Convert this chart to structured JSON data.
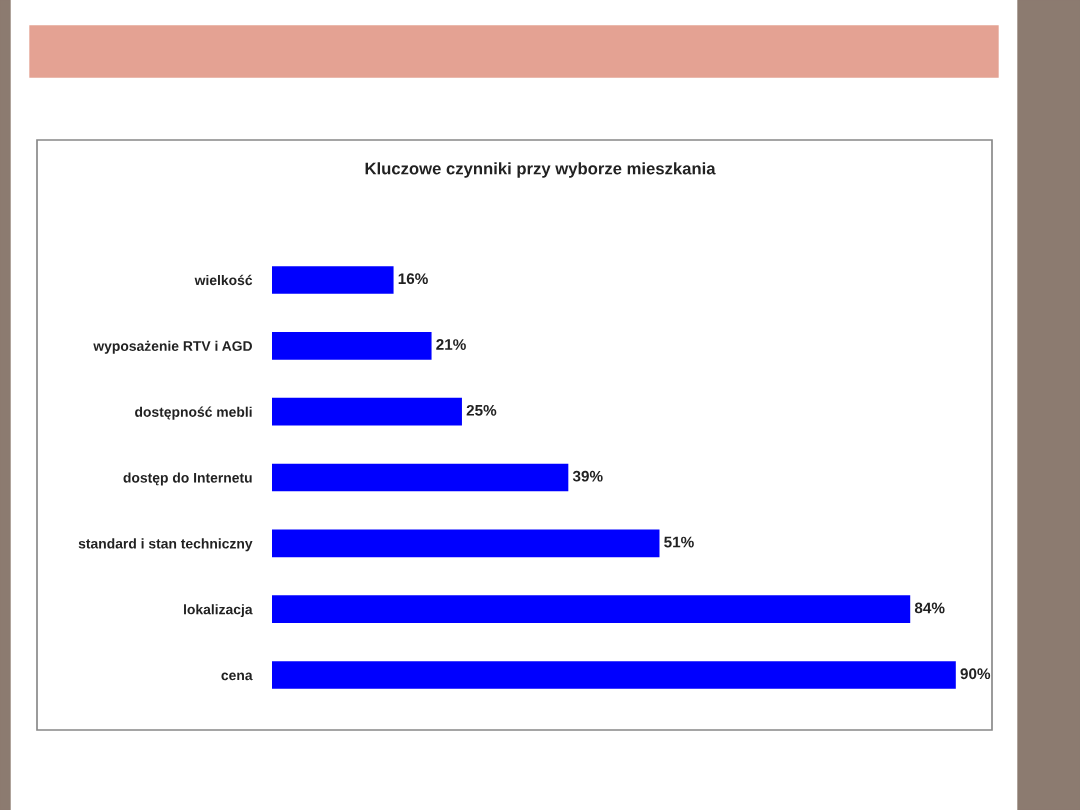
{
  "chart_data": {
    "type": "bar",
    "orientation": "horizontal",
    "title": "Kluczowe czynniki przy wyborze mieszkania",
    "categories": [
      "wielkość",
      "wyposażenie RTV i AGD",
      "dostępność mebli",
      "dostęp do Internetu",
      "standard i stan techniczny",
      "lokalizacja",
      "cena"
    ],
    "values": [
      16,
      21,
      25,
      39,
      51,
      84,
      90
    ],
    "value_labels": [
      "16%",
      "21%",
      "25%",
      "39%",
      "51%",
      "84%",
      "90%"
    ],
    "color": "#0000ff",
    "grid": false,
    "legend": false
  }
}
